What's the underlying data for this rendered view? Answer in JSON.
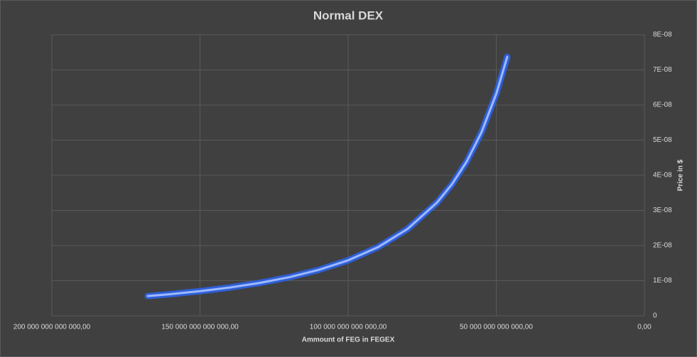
{
  "chart_data": {
    "type": "line",
    "title": "Normal DEX",
    "x_label": "Ammount of FEG in FEGEX",
    "y_label": "Price in $",
    "x": [
      167600000000000,
      160000000000000,
      150000000000000,
      140000000000000,
      130000000000000,
      120000000000000,
      110000000000000,
      100000000000000,
      90000000000000,
      80000000000000,
      70000000000000,
      65000000000000,
      60000000000000,
      55000000000000,
      50000000000000,
      46300000000000
    ],
    "series": [
      {
        "name": "Price",
        "color": "#2f5fd6",
        "values": [
          5.62e-09,
          6.17e-09,
          7.02e-09,
          8.06e-09,
          9.35e-09,
          1.097e-08,
          1.306e-08,
          1.58e-08,
          1.951e-08,
          2.469e-08,
          3.224e-08,
          3.74e-08,
          4.389e-08,
          5.223e-08,
          6.32e-08,
          7.37e-08
        ]
      }
    ],
    "xlim": [
      200000000000000,
      0
    ],
    "xticks": [
      {
        "value": 200000000000000,
        "label": "200 000 000 000 000,00"
      },
      {
        "value": 150000000000000,
        "label": "150 000 000 000 000,00"
      },
      {
        "value": 100000000000000,
        "label": "100 000 000 000 000,00"
      },
      {
        "value": 50000000000000,
        "label": "50 000 000 000 000,00"
      },
      {
        "value": 0,
        "label": "0,00"
      }
    ],
    "ylim": [
      0,
      8e-08
    ],
    "yticks": [
      0,
      {
        "value": 1e-08,
        "label": "1E-08"
      },
      {
        "value": 2e-08,
        "label": "2E-08"
      },
      {
        "value": 3e-08,
        "label": "3E-08"
      },
      {
        "value": 4e-08,
        "label": "4E-08"
      },
      {
        "value": 5e-08,
        "label": "5E-08"
      },
      {
        "value": 6e-08,
        "label": "6E-08"
      },
      {
        "value": 7e-08,
        "label": "7E-08"
      },
      {
        "value": 8e-08,
        "label": "8E-08"
      }
    ],
    "grid": true
  }
}
